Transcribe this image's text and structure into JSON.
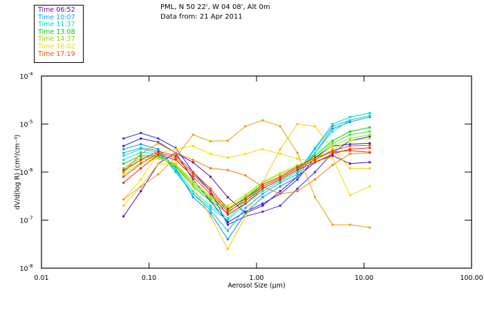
{
  "header": {
    "line1": "PML, N 50 22', W 04 08', Alt 0m",
    "line2": "Data from: 21 Apr 2011"
  },
  "legend": [
    {
      "label": "Time 06:52",
      "color": "#6a00a8"
    },
    {
      "label": "Time 10:07",
      "color": "#00a8ee"
    },
    {
      "label": "Time 11:37",
      "color": "#00e0c0"
    },
    {
      "label": "Time 13:08",
      "color": "#00cc00"
    },
    {
      "label": "Time 14:37",
      "color": "#88e000"
    },
    {
      "label": "Time 16:02",
      "color": "#f8d800"
    },
    {
      "label": "Time 17:19",
      "color": "#f05000"
    }
  ],
  "chart_data": {
    "type": "line",
    "title": "",
    "xlabel": "Aerosol Size (µm)",
    "ylabel": "dV/d(log R) (cm³/cm⁻³)",
    "xscale": "log",
    "yscale": "log",
    "xlim": [
      0.01,
      100
    ],
    "ylim": [
      1e-08,
      0.0001
    ],
    "xticks": [
      "0.01",
      "0.10",
      "1.00",
      "10.00",
      "100.00"
    ],
    "yticks": [
      {
        "base": "10",
        "exp": "-4"
      },
      {
        "base": "10",
        "exp": "-5"
      },
      {
        "base": "10",
        "exp": "-6"
      },
      {
        "base": "10",
        "exp": "-7"
      },
      {
        "base": "10",
        "exp": "-8"
      }
    ],
    "grid": false,
    "legend_position": "top-left",
    "x": [
      0.058,
      0.084,
      0.122,
      0.177,
      0.257,
      0.373,
      0.54,
      0.79,
      1.14,
      1.66,
      2.4,
      3.5,
      5.1,
      7.4,
      11.3
    ],
    "series": [
      {
        "name": "06:52 a",
        "color": "#3030e0",
        "values": [
          5e-06,
          6.5e-06,
          5e-06,
          3.2e-06,
          1e-06,
          4e-07,
          8e-08,
          1.2e-07,
          1.5e-07,
          2e-07,
          4.5e-07,
          1e-06,
          2.5e-06,
          4.5e-06,
          5.5e-06
        ]
      },
      {
        "name": "06:52 b",
        "color": "#5a00b0",
        "values": [
          1.2e-07,
          4e-07,
          1.5e-06,
          2.5e-06,
          1.6e-06,
          8e-07,
          3e-07,
          1.4e-07,
          2e-07,
          4e-07,
          8e-07,
          1.6e-06,
          2.2e-06,
          1.5e-06,
          1.6e-06
        ]
      },
      {
        "name": "06:52 c",
        "color": "#2020d0",
        "values": [
          3.5e-06,
          5e-06,
          4.2e-06,
          2.5e-06,
          7e-07,
          2.5e-07,
          9e-08,
          1.5e-07,
          2.2e-07,
          3.5e-07,
          7e-07,
          2e-06,
          3.5e-06,
          3.8e-06,
          4e-06
        ]
      },
      {
        "name": "10:07 a",
        "color": "#0090f0",
        "values": [
          3e-06,
          3.8e-06,
          3e-06,
          1.2e-06,
          3e-07,
          1.4e-07,
          4e-08,
          1.4e-07,
          3e-07,
          5e-07,
          8e-07,
          2.5e-06,
          8e-06,
          1.1e-05,
          1.4e-05
        ]
      },
      {
        "name": "10:07 b",
        "color": "#00b0f0",
        "values": [
          2.5e-06,
          3.2e-06,
          2.8e-06,
          1e-06,
          3.5e-07,
          1.6e-07,
          6e-08,
          1.8e-07,
          3.5e-07,
          6e-07,
          9e-07,
          3e-06,
          9e-06,
          1.2e-05,
          1.5e-05
        ]
      },
      {
        "name": "11:37 a",
        "color": "#00d8d0",
        "values": [
          2.2e-06,
          3e-06,
          2.6e-06,
          1.1e-06,
          3.5e-07,
          1.8e-07,
          1e-07,
          2.2e-07,
          4e-07,
          6.5e-07,
          1e-06,
          3.2e-06,
          1e-05,
          1.4e-05,
          1.7e-05
        ]
      },
      {
        "name": "11:37 b",
        "color": "#00e8b8",
        "values": [
          1.8e-06,
          2.6e-06,
          2.4e-06,
          1.2e-06,
          4e-07,
          2e-07,
          1.1e-07,
          2.5e-07,
          4.5e-07,
          7e-07,
          1.1e-06,
          2.5e-06,
          7e-06,
          1.2e-05,
          1.5e-05
        ]
      },
      {
        "name": "13:08 a",
        "color": "#00d000",
        "values": [
          1.5e-06,
          2.2e-06,
          2.2e-06,
          1.3e-06,
          5e-07,
          2.5e-07,
          1.4e-07,
          2.8e-07,
          5e-07,
          7.5e-07,
          1.2e-06,
          2.2e-06,
          4.5e-06,
          7e-06,
          8.5e-06
        ]
      },
      {
        "name": "13:08 b",
        "color": "#30e030",
        "values": [
          1.2e-06,
          2e-06,
          2.1e-06,
          1.4e-06,
          5.5e-07,
          2.8e-07,
          1.6e-07,
          3e-07,
          5.5e-07,
          8e-07,
          1.3e-06,
          2e-06,
          4e-06,
          6e-06,
          7e-06
        ]
      },
      {
        "name": "14:37 a",
        "color": "#90e800",
        "values": [
          1e-06,
          1.8e-06,
          2e-06,
          1.5e-06,
          6e-07,
          3e-07,
          1.8e-07,
          3.2e-07,
          6e-07,
          9e-07,
          1.3e-06,
          1.9e-06,
          3.5e-06,
          5e-06,
          6e-06
        ]
      },
      {
        "name": "14:37 b",
        "color": "#b8e800",
        "values": [
          9e-07,
          1.6e-06,
          1.9e-06,
          1.5e-06,
          6.5e-07,
          3.2e-07,
          2e-07,
          3.4e-07,
          6.2e-07,
          9.5e-07,
          1.4e-06,
          1.8e-06,
          3e-06,
          4.5e-06,
          5e-06
        ]
      },
      {
        "name": "16:02 a",
        "color": "#f8c800",
        "values": [
          2e-07,
          5e-07,
          1.5e-06,
          1.4e-06,
          5e-07,
          1.2e-07,
          2.5e-08,
          1.2e-07,
          6e-07,
          3e-06,
          1e-05,
          9e-06,
          3e-06,
          1.2e-06,
          1.2e-06
        ]
      },
      {
        "name": "16:02 b",
        "color": "#f8d800",
        "values": [
          2.7e-07,
          7e-07,
          2.5e-06,
          3e-06,
          3.5e-06,
          2.4e-06,
          2e-06,
          2.4e-06,
          3e-06,
          2.4e-06,
          1.9e-06,
          1.7e-06,
          2e-06,
          3.3e-07,
          5e-07
        ]
      },
      {
        "name": "16:02 c",
        "color": "#e8a000",
        "values": [
          2.7e-07,
          5e-07,
          9e-07,
          2e-06,
          6e-06,
          4.4e-06,
          4.5e-06,
          9e-06,
          1.2e-05,
          9e-06,
          2.5e-06,
          3e-07,
          8e-08,
          8e-08,
          7e-08
        ]
      },
      {
        "name": "17:19 a",
        "color": "#f08000",
        "values": [
          1e-06,
          2.4e-06,
          4e-06,
          2.5e-06,
          1.8e-06,
          1.2e-06,
          1.1e-06,
          8.5e-07,
          5e-07,
          3.5e-07,
          4e-07,
          7e-07,
          1.4e-06,
          2.4e-06,
          2.5e-06
        ]
      },
      {
        "name": "17:19 b",
        "color": "#f02000",
        "values": [
          6e-07,
          1.2e-06,
          2.3e-06,
          1.8e-06,
          8e-07,
          3.5e-07,
          1.3e-07,
          2.2e-07,
          4.5e-07,
          7e-07,
          1.1e-06,
          1.6e-06,
          2.4e-06,
          3e-06,
          3.2e-06
        ]
      },
      {
        "name": "17:19 c",
        "color": "#f04000",
        "values": [
          8e-07,
          1.5e-06,
          2.5e-06,
          2e-06,
          9e-07,
          4e-07,
          1.5e-07,
          2.5e-07,
          5e-07,
          7.5e-07,
          1.2e-06,
          1.8e-06,
          2.8e-06,
          3.5e-06,
          3.6e-06
        ]
      },
      {
        "name": "17:19 d",
        "color": "#e83000",
        "values": [
          1.1e-06,
          1.8e-06,
          2.7e-06,
          2.2e-06,
          1e-06,
          4.5e-07,
          1.7e-07,
          2.8e-07,
          5.5e-07,
          8e-07,
          1.3e-06,
          2e-06,
          2.6e-06,
          2.8e-06,
          2.6e-06
        ]
      }
    ]
  }
}
